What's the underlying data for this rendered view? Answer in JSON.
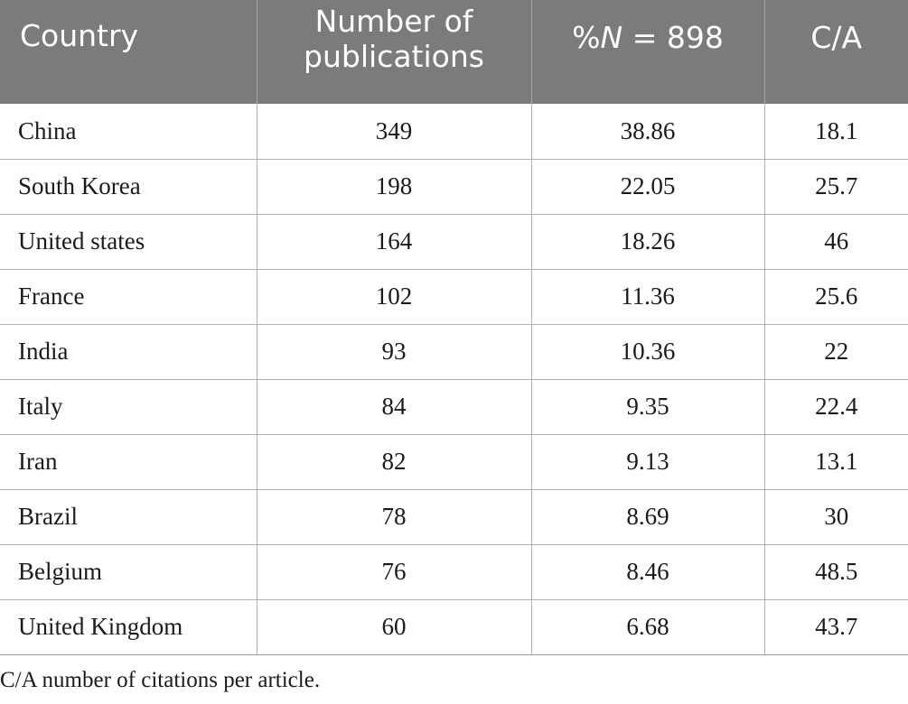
{
  "table": {
    "headers": {
      "country": "Country",
      "publications": "Number of publications",
      "percent_prefix": "%",
      "percent_var": "N",
      "percent_suffix": " = 898",
      "ca": "C/A"
    },
    "rows": [
      {
        "country": "China",
        "publications": "349",
        "percent": "38.86",
        "ca": "18.1"
      },
      {
        "country": "South Korea",
        "publications": "198",
        "percent": "22.05",
        "ca": "25.7"
      },
      {
        "country": "United states",
        "publications": "164",
        "percent": "18.26",
        "ca": "46"
      },
      {
        "country": "France",
        "publications": "102",
        "percent": "11.36",
        "ca": "25.6"
      },
      {
        "country": "India",
        "publications": "93",
        "percent": "10.36",
        "ca": "22"
      },
      {
        "country": "Italy",
        "publications": "84",
        "percent": "9.35",
        "ca": "22.4"
      },
      {
        "country": "Iran",
        "publications": "82",
        "percent": "9.13",
        "ca": "13.1"
      },
      {
        "country": "Brazil",
        "publications": "78",
        "percent": "8.69",
        "ca": "30"
      },
      {
        "country": "Belgium",
        "publications": "76",
        "percent": "8.46",
        "ca": "48.5"
      },
      {
        "country": "United Kingdom",
        "publications": "60",
        "percent": "6.68",
        "ca": "43.7"
      }
    ],
    "footnote": "C/A number of citations per article."
  }
}
